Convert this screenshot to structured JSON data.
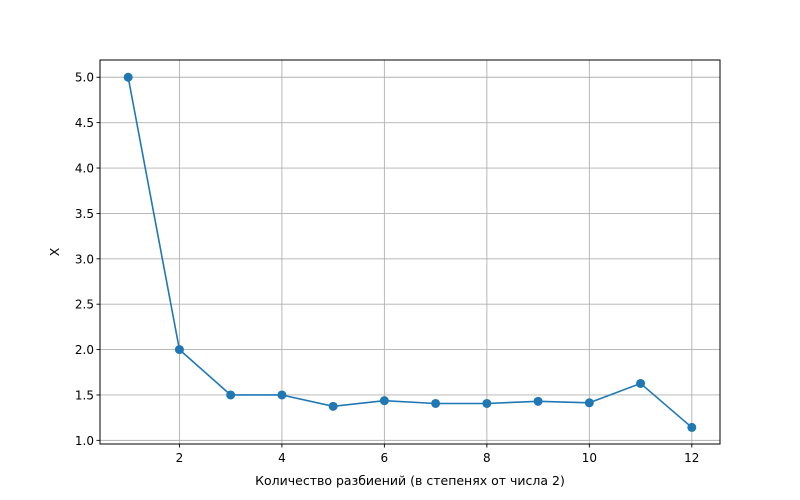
{
  "chart_data": {
    "type": "line",
    "title": "",
    "xlabel": "Количество разбиений (в степенях от числа 2)",
    "ylabel": "X",
    "x": [
      1,
      2,
      3,
      4,
      5,
      6,
      7,
      8,
      9,
      10,
      11,
      12
    ],
    "series": [
      {
        "values": [
          5.0,
          2.0,
          1.5,
          1.5,
          1.375,
          1.4375,
          1.40625,
          1.40625,
          1.4296875,
          1.4140625,
          1.626953125,
          1.142578125
        ]
      }
    ],
    "xlim": [
      0.45,
      12.55
    ],
    "ylim": [
      0.96,
      5.19
    ],
    "xticks": [
      2,
      4,
      6,
      8,
      10,
      12
    ],
    "xtick_labels": [
      "2",
      "4",
      "6",
      "8",
      "10",
      "12"
    ],
    "yticks": [
      1.0,
      1.5,
      2.0,
      2.5,
      3.0,
      3.5,
      4.0,
      4.5,
      5.0
    ],
    "ytick_labels": [
      "1.0",
      "1.5",
      "2.0",
      "2.5",
      "3.0",
      "3.5",
      "4.0",
      "4.5",
      "5.0"
    ],
    "grid": true,
    "markers": true,
    "colors": {
      "series": "#1f77b4",
      "grid": "#b0b0b0"
    }
  }
}
